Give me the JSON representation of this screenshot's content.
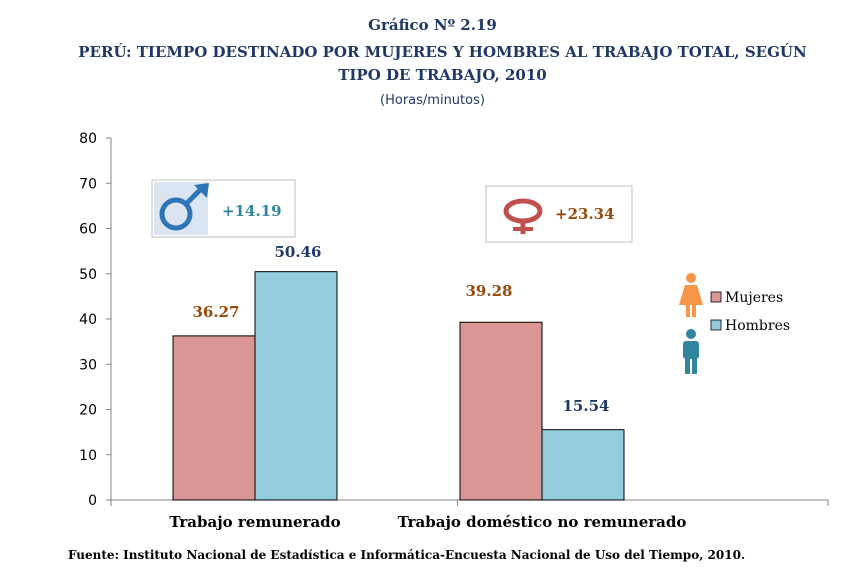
{
  "header": {
    "figure_number": "Gráfico  Nº 2.19",
    "title": "PERÚ:   TIEMPO DESTINADO POR MUJERES Y HOMBRES AL TRABAJO TOTAL, SEGÚN TIPO DE TRABAJO, 2010",
    "unit": "(Horas/minutos)"
  },
  "source": "Fuente: Instituto Nacional de Estadística e Informática-Encuesta Nacional de Uso del Tiempo, 2010.",
  "chart_data": {
    "type": "bar",
    "categories": [
      "Trabajo remunerado",
      "Trabajo doméstico no remunerado"
    ],
    "series": [
      {
        "name": "Mujeres",
        "values": [
          36.27,
          39.28
        ],
        "color": "#d99694",
        "label_color": "#984807"
      },
      {
        "name": "Hombres",
        "values": [
          50.46,
          15.54
        ],
        "color": "#93cddd",
        "label_color": "#1f3864"
      }
    ],
    "value_labels": [
      [
        "36.27",
        "39.28"
      ],
      [
        "50.46",
        "15.54"
      ]
    ],
    "ylim": [
      0,
      80
    ],
    "yticks": [
      0,
      10,
      20,
      30,
      40,
      50,
      60,
      70,
      80
    ],
    "grid": false,
    "legend_position": "right",
    "annotations": [
      {
        "text": "+14.19",
        "icon": "male-symbol-icon",
        "color": "#31859c"
      },
      {
        "text": "+23.34",
        "icon": "female-symbol-icon",
        "color": "#984807"
      }
    ]
  }
}
